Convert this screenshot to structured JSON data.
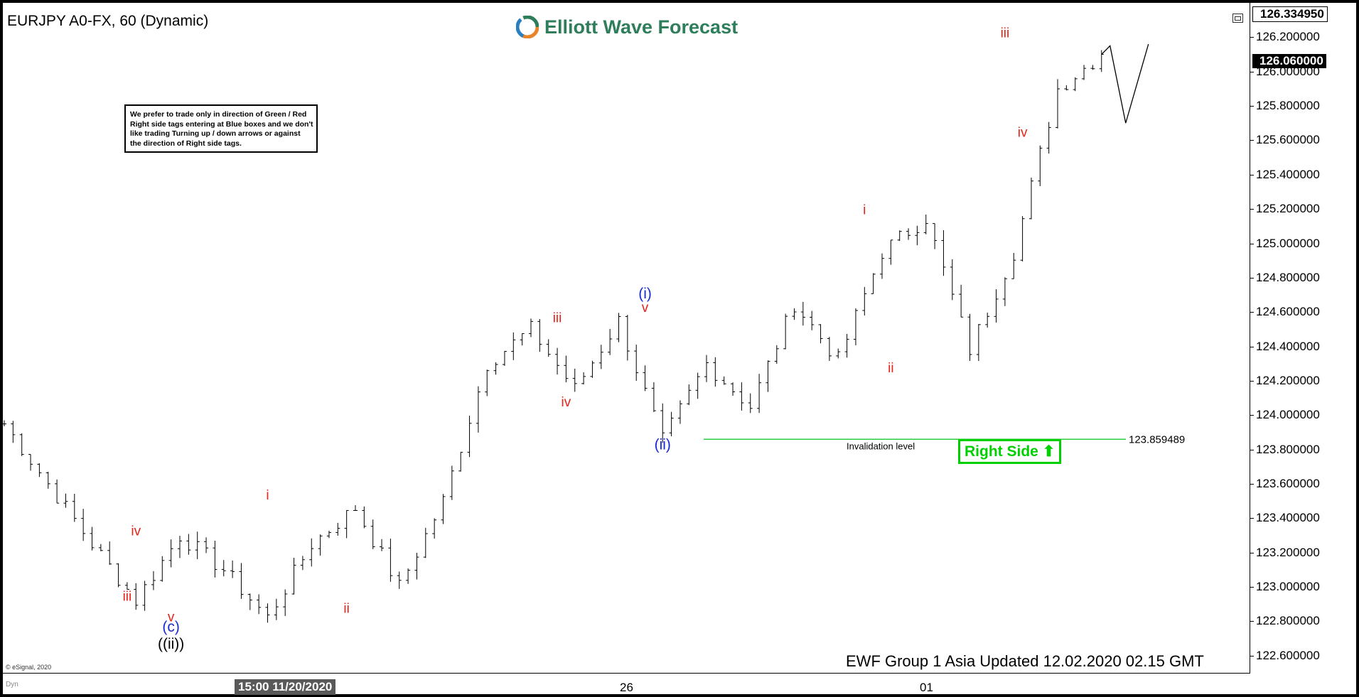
{
  "window": {
    "title": "EURJPY A0-FX, 60 (Dynamic)"
  },
  "logo": {
    "text": "Elliott Wave Forecast"
  },
  "note": {
    "text": "We prefer to trade only in direction of Green / Red Right side tags entering at Blue boxes and we don't like trading Turning up / down arrows or against the direction of Right side tags."
  },
  "footer": {
    "text": "EWF Group 1 Asia Updated 12.02.2020 02.15 GMT",
    "copyright": "© eSignal, 2020",
    "dyn": "Dyn"
  },
  "badge": {
    "label": "Right Side",
    "icon": "arrow-up-icon",
    "color": "#00d000"
  },
  "colors": {
    "wave_red": "#e8231a",
    "wave_blue": "#1a2bd6",
    "wave_black": "#000000",
    "invalidation_line": "#2ecc40",
    "logo": "#2e7d5b"
  },
  "chart_data": {
    "type": "ohlc",
    "symbol": "EURJPY A0-FX",
    "interval": "60",
    "y_axis": {
      "min": 122.5,
      "max": 126.4,
      "ticks": [
        "126.200000",
        "126.000000",
        "125.800000",
        "125.600000",
        "125.400000",
        "125.200000",
        "125.000000",
        "124.800000",
        "124.600000",
        "124.400000",
        "124.200000",
        "124.000000",
        "123.800000",
        "123.600000",
        "123.400000",
        "123.200000",
        "123.000000",
        "122.800000",
        "122.600000"
      ]
    },
    "x_axis": {
      "labels": [
        {
          "label": "15:00 11/20/2020",
          "highlight": true
        },
        {
          "label": "26",
          "highlight": false
        },
        {
          "label": "01",
          "highlight": false
        }
      ]
    },
    "price_labels": {
      "top": "126.334950",
      "last": "126.060000"
    },
    "invalidation": {
      "level": 123.859489,
      "value_label": "123.859489",
      "text": "Invalidation level"
    },
    "wave_path": [
      123.95,
      123.6,
      123.25,
      122.92,
      123.3,
      123.1,
      122.82,
      123.25,
      123.46,
      123.0,
      123.5,
      124.3,
      124.5,
      124.15,
      124.55,
      123.85,
      124.3,
      124.05,
      124.65,
      124.32,
      124.95,
      125.15,
      124.38,
      124.95,
      125.9,
      126.1
    ],
    "projection": [
      126.15,
      125.7,
      126.16
    ],
    "wave_labels": [
      {
        "text": "iii",
        "color": "red",
        "bar": 14,
        "price": 122.92
      },
      {
        "text": "iv",
        "color": "red",
        "bar": 15,
        "price": 123.3
      },
      {
        "text": "v",
        "color": "red",
        "bar": 19,
        "price": 122.8
      },
      {
        "text": "(c)",
        "color": "blue",
        "bar": 19,
        "price": 122.74
      },
      {
        "text": "((ii))",
        "color": "black",
        "bar": 19,
        "price": 122.64
      },
      {
        "text": "i",
        "color": "red",
        "bar": 30,
        "price": 123.51
      },
      {
        "text": "ii",
        "color": "red",
        "bar": 39,
        "price": 122.85
      },
      {
        "text": "iii",
        "color": "red",
        "bar": 63,
        "price": 124.54
      },
      {
        "text": "iv",
        "color": "red",
        "bar": 64,
        "price": 124.05
      },
      {
        "text": "v",
        "color": "red",
        "bar": 73,
        "price": 124.6
      },
      {
        "text": "(i)",
        "color": "blue",
        "bar": 73,
        "price": 124.68
      },
      {
        "text": "(ii)",
        "color": "blue",
        "bar": 75,
        "price": 123.8
      },
      {
        "text": "i",
        "color": "red",
        "bar": 98,
        "price": 125.17
      },
      {
        "text": "ii",
        "color": "red",
        "bar": 101,
        "price": 124.25
      },
      {
        "text": "iii",
        "color": "red",
        "bar": 114,
        "price": 126.2
      },
      {
        "text": "iv",
        "color": "red",
        "bar": 116,
        "price": 125.62
      }
    ]
  }
}
